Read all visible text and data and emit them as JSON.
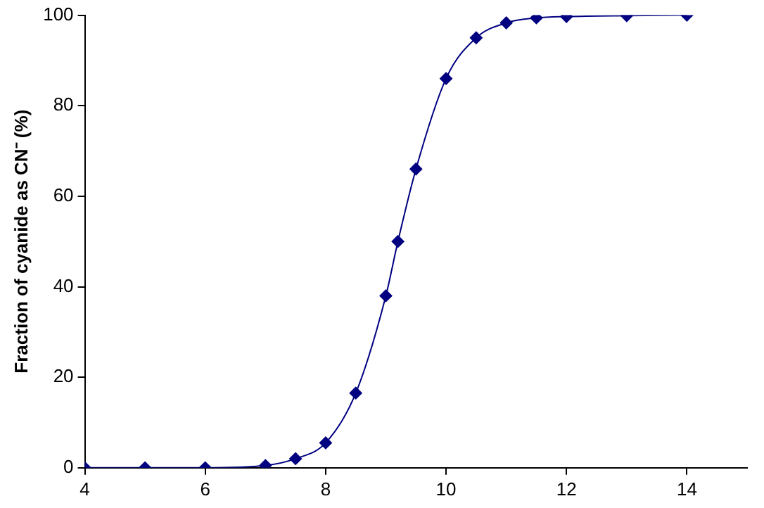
{
  "chart_data": {
    "type": "line",
    "ylabel": "Fraction of cyanide as CN⁻ (%)",
    "x": [
      4,
      5,
      6,
      7,
      7.5,
      8,
      8.5,
      9,
      9.2,
      9.5,
      10,
      10.5,
      11,
      11.5,
      12,
      13,
      14
    ],
    "series": [
      {
        "color": "#000080",
        "values": [
          0,
          0,
          0,
          0.5,
          2,
          5.5,
          16.5,
          38,
          50,
          66,
          86,
          95,
          98.3,
          99.4,
          99.7,
          99.9,
          100
        ]
      }
    ],
    "xlim": [
      4,
      15
    ],
    "xticks": [
      4,
      6,
      8,
      10,
      12,
      14
    ],
    "ylim": [
      0,
      100
    ],
    "yticks": [
      0,
      20,
      40,
      60,
      80,
      100
    ],
    "legend": false,
    "marker": "diamond",
    "line_style": "solid"
  }
}
